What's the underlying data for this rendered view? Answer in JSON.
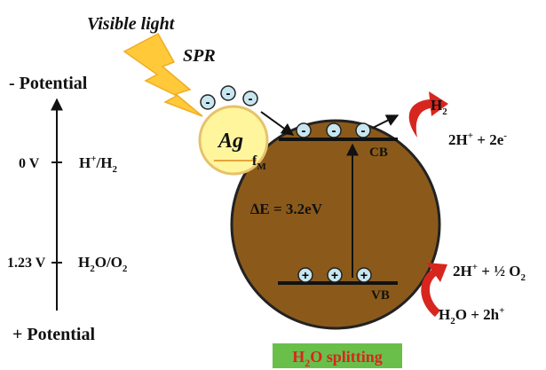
{
  "light": {
    "visible_light": "Visible light",
    "spr": "SPR"
  },
  "potential_axis": {
    "top_label": "- Potential",
    "bottom_label": "+ Potential",
    "marks": [
      {
        "value": "0 V",
        "couple_main": "H",
        "couple_sup": "+",
        "couple_rest": "/H",
        "couple_sub": "2"
      },
      {
        "value": "1.23 V",
        "couple_main": "H",
        "couple_sub1": "2",
        "couple_mid": "O/O",
        "couple_sub2": "2"
      }
    ]
  },
  "particle": {
    "metal": "Ag",
    "fermi_main": "f",
    "fermi_sub": "M",
    "electron_symbol": "-"
  },
  "bands": {
    "cb": "CB",
    "vb": "VB",
    "gap": "∆E = 3.2eV",
    "electron_symbol": "-",
    "hole_symbol": "+"
  },
  "reactions": {
    "h2_main": "H",
    "h2_sub": "2",
    "reduction": {
      "a": "2H",
      "a_sup": "+",
      "b": " + 2e",
      "b_sup": "-"
    },
    "oxidation_products": {
      "a": "2H",
      "a_sup": "+",
      "b": " + ½ O",
      "b_sub": "2"
    },
    "oxidation_reactants": {
      "a": "H",
      "a_sub": "2",
      "b": "O + 2h",
      "b_sup": "+"
    }
  },
  "footer": {
    "label_main": "H",
    "label_sub": "2",
    "label_rest": "O splitting",
    "bg_color": "#6abf4b",
    "text_color": "#d7261e"
  },
  "colors": {
    "particle_fill": "#8b5a1b",
    "ag_fill": "#fff59d",
    "ag_stroke": "#e7c26a",
    "bolt_fill": "#ffc93a",
    "charge_fill": "#c7e6f0",
    "arrow_red": "#d7261e"
  }
}
